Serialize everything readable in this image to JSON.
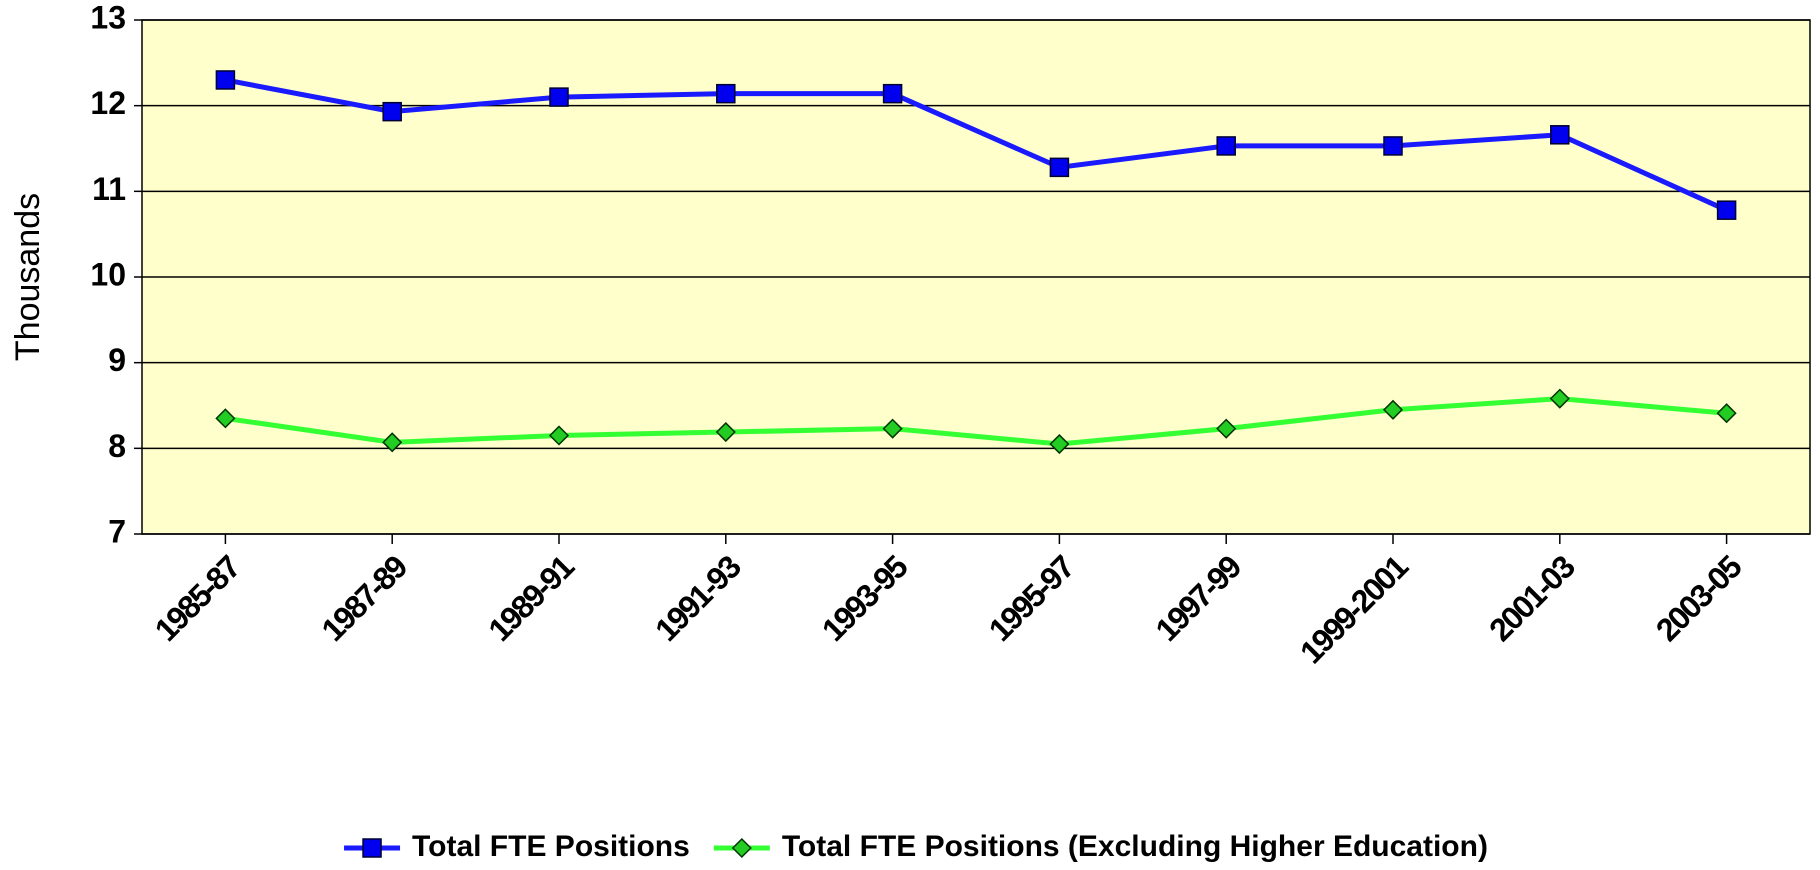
{
  "chart_data": {
    "type": "line",
    "y_label": "Thousands",
    "categories": [
      "1985-87",
      "1987-89",
      "1989-91",
      "1991-93",
      "1993-95",
      "1995-97",
      "1997-99",
      "1999-2001",
      "2001-03",
      "2003-05"
    ],
    "series": [
      {
        "name": "Total FTE Positions",
        "color": "#1a1aff",
        "marker": "square",
        "values": [
          12.3,
          11.93,
          12.1,
          12.14,
          12.14,
          11.28,
          11.53,
          11.53,
          11.66,
          10.78
        ]
      },
      {
        "name": "Total FTE Positions (Excluding Higher Education)",
        "color": "#33ff33",
        "marker": "diamond",
        "values": [
          8.35,
          8.07,
          8.15,
          8.19,
          8.23,
          8.05,
          8.23,
          8.45,
          8.58,
          8.41
        ]
      }
    ],
    "ylim": [
      7,
      13
    ],
    "yticks": [
      7,
      8,
      9,
      10,
      11,
      12,
      13
    ],
    "grid": true,
    "legend": "bottom",
    "plot_background": "#ffffcc"
  }
}
